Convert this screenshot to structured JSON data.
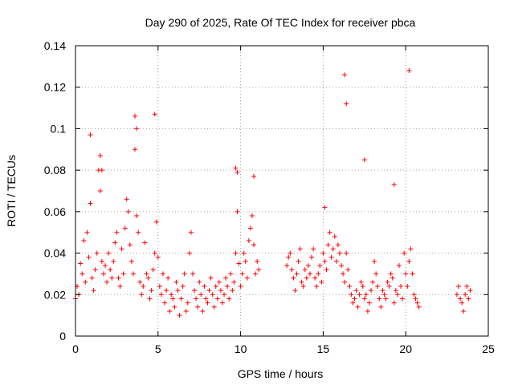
{
  "chart_data": {
    "type": "scatter",
    "title": "Day 290 of 2025, Rate Of TEC Index for receiver pbca",
    "xlabel": "GPS time / hours",
    "ylabel": "ROTI / TECUs",
    "xlim": [
      0,
      25
    ],
    "ylim": [
      0,
      0.14
    ],
    "x_ticks": [
      0,
      5,
      10,
      15,
      20,
      25
    ],
    "y_ticks": [
      0,
      0.02,
      0.04,
      0.06,
      0.08,
      0.1,
      0.12,
      0.14
    ],
    "x_tick_labels": [
      "0",
      "5",
      "10",
      "15",
      "20",
      "25"
    ],
    "y_tick_labels": [
      "0",
      "0.02",
      "0.04",
      "0.06",
      "0.08",
      "0.1",
      "0.12",
      "0.14"
    ],
    "grid": true,
    "marker": "plus",
    "color": "#ff0000",
    "series": [
      {
        "x": [
          0.0,
          0.1,
          0.2,
          0.3,
          0.4,
          0.5,
          0.6,
          0.7,
          0.8,
          0.9,
          1.0,
          1.1,
          1.2,
          1.3,
          1.4,
          1.5,
          1.6,
          1.7,
          1.8,
          1.9,
          2.0,
          2.1,
          2.2,
          2.3,
          2.4,
          2.5,
          2.6,
          2.7,
          2.8,
          2.9,
          3.0,
          3.1,
          3.2,
          3.3,
          3.4,
          3.5,
          3.6,
          3.7,
          3.8,
          3.9,
          4.0,
          4.1,
          4.2,
          4.3,
          4.4,
          4.5,
          4.6,
          4.7,
          4.8,
          4.9,
          5.0,
          5.1,
          5.2,
          5.3,
          5.4,
          5.5,
          5.6,
          5.7,
          5.8,
          5.9,
          6.0,
          6.1,
          6.2,
          6.3,
          6.4,
          6.5,
          6.6,
          6.7,
          6.8,
          6.9,
          7.0,
          7.1,
          7.2,
          7.3,
          7.4,
          7.5,
          7.6,
          7.7,
          7.8,
          7.9,
          8.0,
          8.1,
          8.2,
          8.3,
          8.4,
          8.5,
          8.6,
          8.7,
          8.8,
          8.9,
          9.0,
          9.1,
          9.2,
          9.3,
          9.4,
          9.5,
          9.6,
          9.7,
          9.8,
          9.9,
          10.0,
          10.1,
          10.2,
          10.3,
          10.4,
          10.5,
          10.6,
          10.7,
          10.8,
          10.9,
          11.0,
          11.1,
          12.8,
          12.9,
          13.0,
          13.1,
          13.2,
          13.3,
          13.4,
          13.5,
          13.6,
          13.7,
          13.8,
          13.9,
          14.0,
          14.1,
          14.2,
          14.3,
          14.4,
          14.5,
          14.6,
          14.7,
          14.8,
          14.9,
          15.0,
          15.1,
          15.2,
          15.3,
          15.4,
          15.5,
          15.6,
          15.7,
          15.8,
          15.9,
          16.0,
          16.1,
          16.2,
          16.3,
          16.4,
          16.5,
          16.6,
          16.7,
          16.8,
          16.9,
          17.0,
          17.1,
          17.2,
          17.3,
          17.4,
          17.5,
          17.6,
          17.7,
          17.8,
          17.9,
          18.0,
          18.1,
          18.2,
          18.3,
          18.4,
          18.5,
          18.6,
          18.7,
          18.8,
          18.9,
          19.0,
          19.1,
          19.2,
          19.3,
          19.4,
          19.5,
          19.6,
          19.7,
          19.8,
          19.9,
          20.0,
          20.1,
          20.2,
          20.3,
          20.4,
          20.5,
          20.6,
          20.7,
          20.8,
          23.1,
          23.2,
          23.3,
          23.4,
          23.5,
          23.6,
          23.7,
          23.8,
          23.9,
          0.9,
          1.5,
          1.6,
          3.6,
          3.7,
          4.8,
          9.7,
          9.8,
          10.8,
          15.1,
          16.3,
          16.4,
          17.5,
          19.3,
          20.2
        ],
        "y": [
          0.018,
          0.024,
          0.02,
          0.035,
          0.03,
          0.046,
          0.026,
          0.05,
          0.038,
          0.064,
          0.028,
          0.022,
          0.032,
          0.04,
          0.08,
          0.07,
          0.036,
          0.03,
          0.034,
          0.026,
          0.04,
          0.032,
          0.028,
          0.036,
          0.045,
          0.05,
          0.028,
          0.024,
          0.042,
          0.03,
          0.052,
          0.066,
          0.06,
          0.044,
          0.036,
          0.03,
          0.09,
          0.058,
          0.05,
          0.026,
          0.02,
          0.024,
          0.045,
          0.03,
          0.028,
          0.018,
          0.022,
          0.032,
          0.04,
          0.055,
          0.038,
          0.024,
          0.02,
          0.03,
          0.016,
          0.022,
          0.028,
          0.012,
          0.02,
          0.018,
          0.014,
          0.026,
          0.022,
          0.01,
          0.018,
          0.024,
          0.03,
          0.012,
          0.016,
          0.04,
          0.05,
          0.03,
          0.022,
          0.018,
          0.014,
          0.026,
          0.02,
          0.012,
          0.024,
          0.018,
          0.016,
          0.022,
          0.028,
          0.02,
          0.014,
          0.024,
          0.018,
          0.026,
          0.022,
          0.016,
          0.02,
          0.028,
          0.024,
          0.018,
          0.03,
          0.022,
          0.026,
          0.04,
          0.06,
          0.035,
          0.024,
          0.03,
          0.04,
          0.036,
          0.028,
          0.046,
          0.052,
          0.058,
          0.044,
          0.03,
          0.036,
          0.032,
          0.034,
          0.038,
          0.04,
          0.032,
          0.028,
          0.022,
          0.03,
          0.036,
          0.042,
          0.026,
          0.024,
          0.032,
          0.028,
          0.034,
          0.03,
          0.038,
          0.042,
          0.028,
          0.024,
          0.03,
          0.034,
          0.026,
          0.04,
          0.036,
          0.032,
          0.044,
          0.05,
          0.038,
          0.042,
          0.048,
          0.036,
          0.044,
          0.04,
          0.034,
          0.03,
          0.026,
          0.04,
          0.032,
          0.024,
          0.02,
          0.016,
          0.018,
          0.022,
          0.014,
          0.02,
          0.026,
          0.024,
          0.018,
          0.02,
          0.012,
          0.016,
          0.022,
          0.026,
          0.036,
          0.03,
          0.024,
          0.018,
          0.014,
          0.022,
          0.02,
          0.018,
          0.026,
          0.024,
          0.03,
          0.028,
          0.016,
          0.022,
          0.02,
          0.034,
          0.024,
          0.018,
          0.04,
          0.03,
          0.024,
          0.036,
          0.042,
          0.03,
          0.02,
          0.018,
          0.016,
          0.014,
          0.02,
          0.024,
          0.018,
          0.016,
          0.012,
          0.02,
          0.024,
          0.018,
          0.022,
          0.097,
          0.087,
          0.08,
          0.106,
          0.1,
          0.107,
          0.081,
          0.079,
          0.077,
          0.062,
          0.126,
          0.112,
          0.085,
          0.073,
          0.128
        ]
      }
    ]
  }
}
